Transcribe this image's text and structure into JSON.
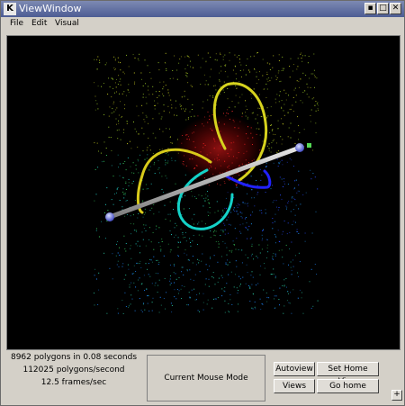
{
  "window": {
    "title": "ViewWindow",
    "app_icon": "K"
  },
  "titlebar_buttons": [
    {
      "name": "minimize-button",
      "glyph": "▪"
    },
    {
      "name": "maximize-button",
      "glyph": "□"
    },
    {
      "name": "close-button",
      "glyph": "✕"
    }
  ],
  "menu": {
    "file": "File",
    "edit": "Edit",
    "visual": "Visual"
  },
  "stats": {
    "line1": "8962 polygons in 0.08 seconds",
    "line2": "112025 polygons/second",
    "line3": "12.5 frames/sec"
  },
  "mouse_mode_label": "Current Mouse Mode",
  "buttons": {
    "autoview": "Autoview",
    "set_home_view": "Set Home View",
    "views": "Views",
    "go_home": "Go home"
  },
  "corner_button": "+"
}
